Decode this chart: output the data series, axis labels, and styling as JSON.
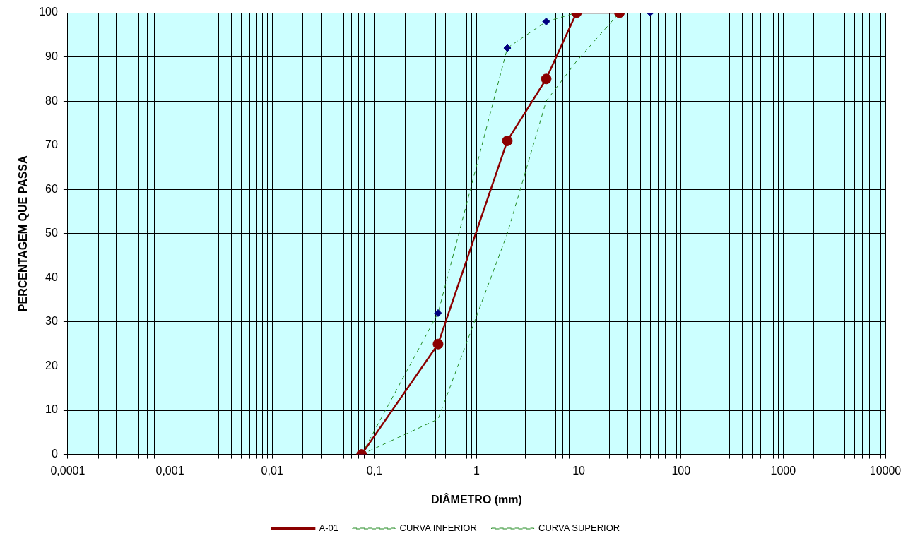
{
  "chart_data": {
    "type": "line",
    "xlabel": "DIÂMETRO (mm)",
    "ylabel": "PERCENTAGEM QUE PASSA",
    "log": "x",
    "grid": true,
    "legend": "bottom",
    "xlim": [
      0.0001,
      10000
    ],
    "ylim": [
      0,
      100
    ],
    "yticks": [
      0,
      10,
      20,
      30,
      40,
      50,
      60,
      70,
      80,
      90,
      100
    ],
    "xticks": [
      {
        "value": 0.0001,
        "label": "0,0001"
      },
      {
        "value": 0.0002,
        "label": null
      },
      {
        "value": 0.0003,
        "label": null
      },
      {
        "value": 0.0004,
        "label": null
      },
      {
        "value": 0.0005,
        "label": null
      },
      {
        "value": 0.0006,
        "label": null
      },
      {
        "value": 0.0007,
        "label": null
      },
      {
        "value": 0.0008,
        "label": null
      },
      {
        "value": 0.0009,
        "label": null
      },
      {
        "value": 0.001,
        "label": "0,001"
      },
      {
        "value": 0.002,
        "label": null
      },
      {
        "value": 0.003,
        "label": null
      },
      {
        "value": 0.004,
        "label": null
      },
      {
        "value": 0.005,
        "label": null
      },
      {
        "value": 0.006,
        "label": null
      },
      {
        "value": 0.007,
        "label": null
      },
      {
        "value": 0.008,
        "label": null
      },
      {
        "value": 0.009,
        "label": null
      },
      {
        "value": 0.01,
        "label": "0,01"
      },
      {
        "value": 0.02,
        "label": null
      },
      {
        "value": 0.03,
        "label": null
      },
      {
        "value": 0.04,
        "label": null
      },
      {
        "value": 0.05,
        "label": null
      },
      {
        "value": 0.06,
        "label": null
      },
      {
        "value": 0.07,
        "label": null
      },
      {
        "value": 0.08,
        "label": null
      },
      {
        "value": 0.09,
        "label": null
      },
      {
        "value": 0.1,
        "label": "0,1"
      },
      {
        "value": 0.2,
        "label": null
      },
      {
        "value": 0.3,
        "label": null
      },
      {
        "value": 0.4,
        "label": null
      },
      {
        "value": 0.5,
        "label": null
      },
      {
        "value": 0.6,
        "label": null
      },
      {
        "value": 0.7,
        "label": null
      },
      {
        "value": 0.8,
        "label": null
      },
      {
        "value": 0.9,
        "label": null
      },
      {
        "value": 1,
        "label": "1"
      },
      {
        "value": 2,
        "label": null
      },
      {
        "value": 3,
        "label": null
      },
      {
        "value": 4,
        "label": null
      },
      {
        "value": 5,
        "label": null
      },
      {
        "value": 6,
        "label": null
      },
      {
        "value": 7,
        "label": null
      },
      {
        "value": 8,
        "label": null
      },
      {
        "value": 9,
        "label": null
      },
      {
        "value": 10,
        "label": "10"
      },
      {
        "value": 20,
        "label": null
      },
      {
        "value": 30,
        "label": null
      },
      {
        "value": 40,
        "label": null
      },
      {
        "value": 50,
        "label": null
      },
      {
        "value": 60,
        "label": null
      },
      {
        "value": 70,
        "label": null
      },
      {
        "value": 80,
        "label": null
      },
      {
        "value": 90,
        "label": null
      },
      {
        "value": 100,
        "label": "100"
      },
      {
        "value": 200,
        "label": null
      },
      {
        "value": 300,
        "label": null
      },
      {
        "value": 400,
        "label": null
      },
      {
        "value": 500,
        "label": null
      },
      {
        "value": 600,
        "label": null
      },
      {
        "value": 700,
        "label": null
      },
      {
        "value": 800,
        "label": null
      },
      {
        "value": 900,
        "label": null
      },
      {
        "value": 1000,
        "label": "1000"
      },
      {
        "value": 2000,
        "label": null
      },
      {
        "value": 3000,
        "label": null
      },
      {
        "value": 4000,
        "label": null
      },
      {
        "value": 5000,
        "label": null
      },
      {
        "value": 6000,
        "label": null
      },
      {
        "value": 7000,
        "label": null
      },
      {
        "value": 8000,
        "label": null
      },
      {
        "value": 9000,
        "label": null
      },
      {
        "value": 10000,
        "label": "10000"
      }
    ],
    "series": [
      {
        "name": "A-01",
        "color": "#8b0000",
        "marker": "circle",
        "line_style": "solid",
        "x": [
          0.075,
          0.42,
          2,
          4.8,
          9.5,
          25
        ],
        "values": [
          0,
          25,
          71,
          85,
          100,
          100
        ]
      },
      {
        "name": "CURVA INFERIOR",
        "color": "#228b22",
        "colors": [
          "#000080",
          "#000080",
          "#000080",
          "#000080",
          "#000080",
          "#000080",
          "#000080"
        ],
        "marker": "diamond",
        "line_style": "dashed",
        "x": [
          0.075,
          0.42,
          2,
          4.8,
          9.5,
          25,
          50
        ],
        "values": [
          0,
          32,
          92,
          98,
          100,
          100,
          100
        ]
      },
      {
        "name": "CURVA SUPERIOR",
        "color": "#228b22",
        "line_style": "dashed",
        "x": [
          0.075,
          0.42,
          2,
          4.8,
          9.5,
          25
        ],
        "values": [
          0,
          8,
          50,
          80,
          89,
          100
        ]
      }
    ]
  }
}
